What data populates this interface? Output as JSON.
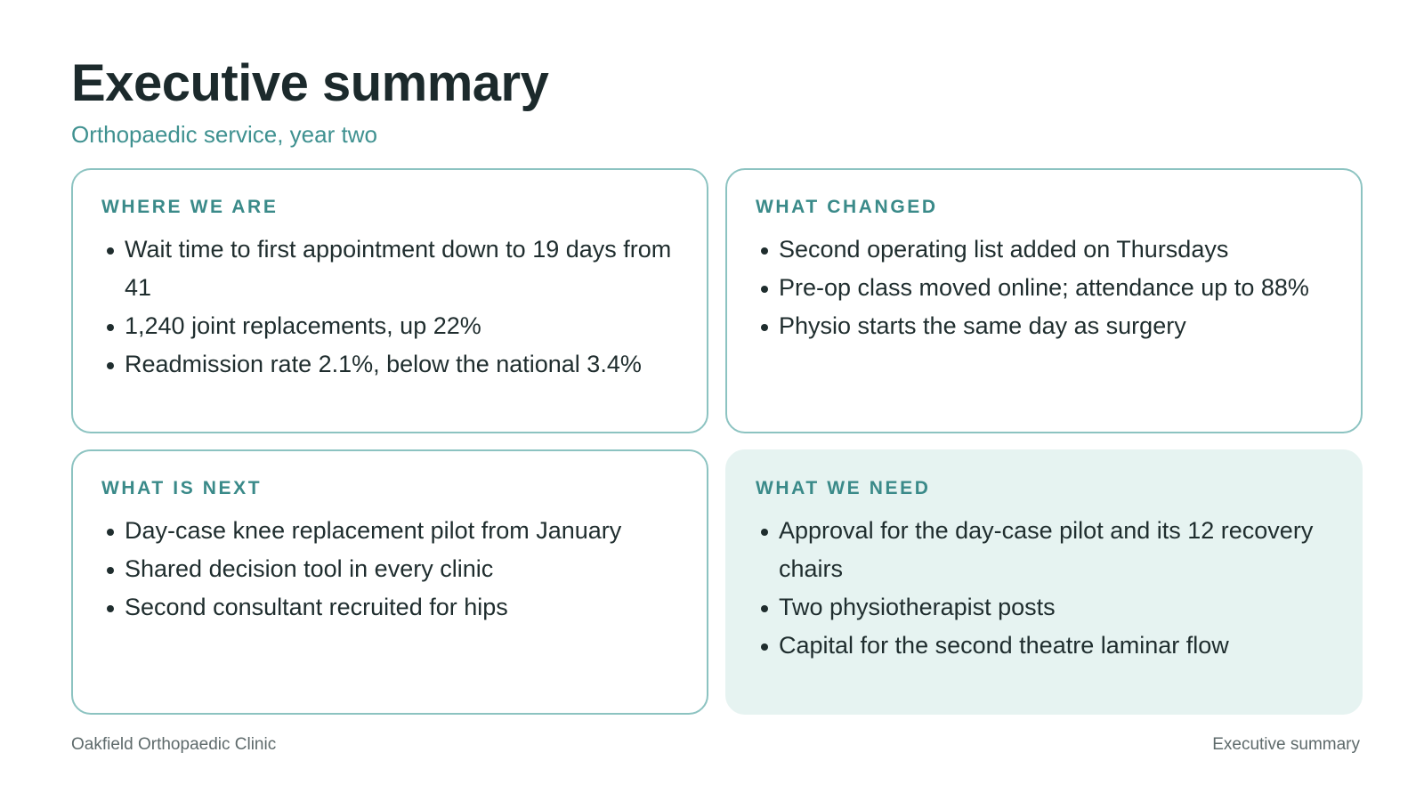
{
  "title": "Executive summary",
  "subtitle": "Orthopaedic service, year two",
  "cards": [
    {
      "heading": "WHERE WE ARE",
      "items": [
        "Wait time to first appointment down to 19 days from 41",
        "1,240 joint replacements, up 22%",
        "Readmission rate 2.1%, below the national 3.4%"
      ]
    },
    {
      "heading": "WHAT CHANGED",
      "items": [
        "Second operating list added on Thursdays",
        "Pre-op class moved online; attendance up to 88%",
        "Physio starts the same day as surgery"
      ]
    },
    {
      "heading": "WHAT IS NEXT",
      "items": [
        "Day-case knee replacement pilot from January",
        "Shared decision tool in every clinic",
        "Second consultant recruited for hips"
      ]
    },
    {
      "heading": "WHAT WE NEED",
      "items": [
        "Approval for the day-case pilot and its 12 recovery chairs",
        "Two physiotherapist posts",
        "Capital for the second theatre laminar flow"
      ]
    }
  ],
  "footer": {
    "left": "Oakfield Orthopaedic Clinic",
    "right": "Executive summary"
  },
  "colors": {
    "accent": "#3a8a89",
    "card_border": "#8cc3c1",
    "highlight_fill": "#e6f3f1"
  }
}
